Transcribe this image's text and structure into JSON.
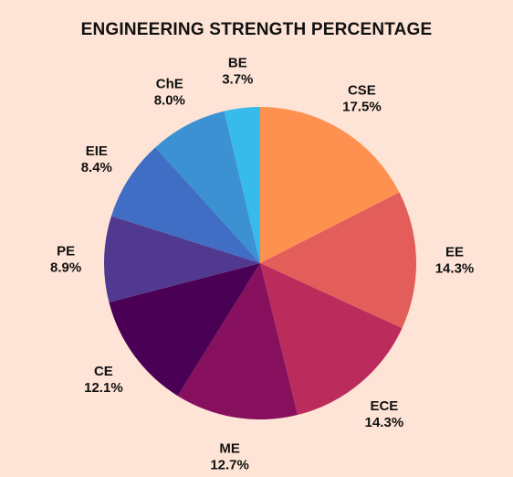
{
  "chart_data": {
    "type": "pie",
    "title": "ENGINEERING STRENGTH PERCENTAGE",
    "start_angle_deg": 0,
    "direction": "clockwise",
    "slices": [
      {
        "label": "CSE",
        "value": 17.5,
        "display": "17.5%",
        "color": "#ff9150"
      },
      {
        "label": "EE",
        "value": 14.3,
        "display": "14.3%",
        "color": "#e35d5b"
      },
      {
        "label": "ECE",
        "value": 14.3,
        "display": "14.3%",
        "color": "#bb2b5c"
      },
      {
        "label": "ME",
        "value": 12.7,
        "display": "12.7%",
        "color": "#86105e"
      },
      {
        "label": "CE",
        "value": 12.1,
        "display": "12.1%",
        "color": "#4a0155"
      },
      {
        "label": "PE",
        "value": 8.9,
        "display": "8.9%",
        "color": "#51398f"
      },
      {
        "label": "EIE",
        "value": 8.4,
        "display": "8.4%",
        "color": "#3f6ec4"
      },
      {
        "label": "ChE",
        "value": 8.0,
        "display": "8.0%",
        "color": "#3c91d3"
      },
      {
        "label": "BE",
        "value": 3.7,
        "display": "3.7%",
        "color": "#36bbea"
      }
    ]
  }
}
